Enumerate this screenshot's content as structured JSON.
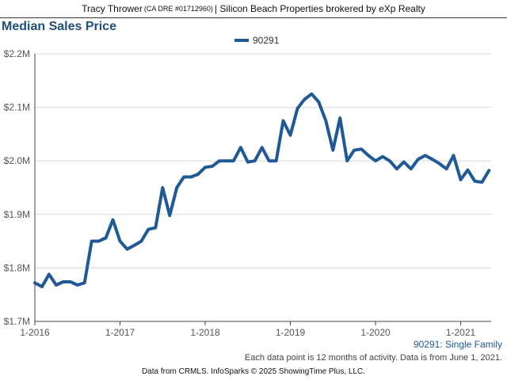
{
  "header": {
    "agent": "Tracy Thrower",
    "license": "(CA DRE #01712960)",
    "brokerage": "| Silicon Beach Properties brokered by eXp Realty"
  },
  "chart_data": {
    "type": "line",
    "title": "Median Sales Price",
    "xlabel": "",
    "ylabel": "",
    "x_ticks": [
      "1-2016",
      "1-2017",
      "1-2018",
      "1-2019",
      "1-2020",
      "1-2021"
    ],
    "y_ticks": [
      "$1.7M",
      "$1.8M",
      "$1.9M",
      "$2.0M",
      "$2.1M",
      "$2.2M"
    ],
    "ylim": [
      1700000,
      2200000
    ],
    "xlim": [
      "2016-01",
      "2021-05"
    ],
    "grid": "horizontal",
    "legend_position": "top-center",
    "series": [
      {
        "name": "90291",
        "color": "#1f5a96",
        "x": [
          "2016-01",
          "2016-02",
          "2016-03",
          "2016-04",
          "2016-05",
          "2016-06",
          "2016-07",
          "2016-08",
          "2016-09",
          "2016-10",
          "2016-11",
          "2016-12",
          "2017-01",
          "2017-02",
          "2017-03",
          "2017-04",
          "2017-05",
          "2017-06",
          "2017-07",
          "2017-08",
          "2017-09",
          "2017-10",
          "2017-11",
          "2017-12",
          "2018-01",
          "2018-02",
          "2018-03",
          "2018-04",
          "2018-05",
          "2018-06",
          "2018-07",
          "2018-08",
          "2018-09",
          "2018-10",
          "2018-11",
          "2018-12",
          "2019-01",
          "2019-02",
          "2019-03",
          "2019-04",
          "2019-05",
          "2019-06",
          "2019-07",
          "2019-08",
          "2019-09",
          "2019-10",
          "2019-11",
          "2019-12",
          "2020-01",
          "2020-02",
          "2020-03",
          "2020-04",
          "2020-05",
          "2020-06",
          "2020-07",
          "2020-08",
          "2020-09",
          "2020-10",
          "2020-11",
          "2020-12",
          "2021-01",
          "2021-02",
          "2021-03",
          "2021-04",
          "2021-05"
        ],
        "values": [
          1772000,
          1765000,
          1788000,
          1768000,
          1774000,
          1774000,
          1768000,
          1772000,
          1850000,
          1850000,
          1856000,
          1890000,
          1850000,
          1835000,
          1842000,
          1850000,
          1872000,
          1875000,
          1950000,
          1898000,
          1950000,
          1970000,
          1970000,
          1975000,
          1988000,
          1990000,
          2000000,
          2000000,
          2000000,
          2025000,
          1998000,
          2000000,
          2025000,
          2000000,
          2000000,
          2075000,
          2048000,
          2098000,
          2115000,
          2125000,
          2110000,
          2075000,
          2020000,
          2080000,
          2000000,
          2020000,
          2022000,
          2010000,
          2000000,
          2008000,
          2000000,
          1985000,
          1998000,
          1985000,
          2003000,
          2010000,
          2003000,
          1995000,
          1985000,
          2010000,
          1965000,
          1983000,
          1962000,
          1960000,
          1982000
        ]
      }
    ]
  },
  "series_caption": "90291: Single Family",
  "note": "Each data point is 12 months of activity. Data is from June 1, 2021.",
  "source": "Data from CRMLS. InfoSparks © 2025 ShowingTime Plus, LLC."
}
